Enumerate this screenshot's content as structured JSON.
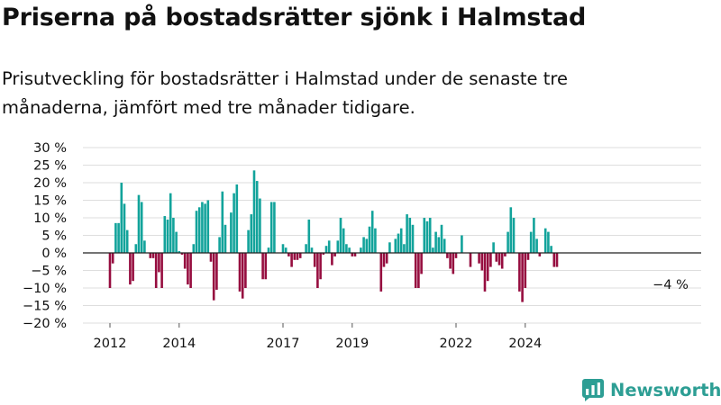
{
  "title": "Priserna på bostadsrätter sjönk i Halmstad",
  "subtitle": "Prisutveckling för bostadsrätter i Halmstad under de senaste tre månaderna, jämfört med tre månader tidigare.",
  "brand": "Newsworthy",
  "colors": {
    "positive": "#12a39b",
    "negative": "#960d3f",
    "gridline": "#dedede",
    "axis": "#222222",
    "brand": "#2d9e94"
  },
  "chart_data": {
    "type": "bar",
    "title": "Priserna på bostadsrätter sjönk i Halmstad",
    "subtitle": "Prisutveckling för bostadsrätter i Halmstad under de senaste tre månaderna, jämfört med tre månader tidigare.",
    "xlabel": "",
    "ylabel": "",
    "ylim": [
      -20,
      30
    ],
    "grid": true,
    "y_ticks": [
      {
        "value": 30,
        "label": "30 %"
      },
      {
        "value": 25,
        "label": "25 %"
      },
      {
        "value": 20,
        "label": "20 %"
      },
      {
        "value": 15,
        "label": "15 %"
      },
      {
        "value": 10,
        "label": "10 %"
      },
      {
        "value": 5,
        "label": "5 %"
      },
      {
        "value": 0,
        "label": "0 %"
      },
      {
        "value": -5,
        "label": "−5 %"
      },
      {
        "value": -10,
        "label": "−10 %"
      },
      {
        "value": -15,
        "label": "−15 %"
      },
      {
        "value": -20,
        "label": "−20 %"
      }
    ],
    "x_ticks": [
      {
        "date": "2012-01",
        "label": "2012"
      },
      {
        "date": "2014-01",
        "label": "2014"
      },
      {
        "date": "2017-01",
        "label": "2017"
      },
      {
        "date": "2019-01",
        "label": "2019"
      },
      {
        "date": "2022-01",
        "label": "2022"
      },
      {
        "date": "2024-01",
        "label": "2024"
      }
    ],
    "annotations": [
      {
        "text": "−4 %",
        "date": "2025-05",
        "value": -4
      }
    ],
    "series": [
      {
        "points": [
          {
            "date": "2012-01",
            "value": -10
          },
          {
            "date": "2012-02",
            "value": -3
          },
          {
            "date": "2012-03",
            "value": 8.5
          },
          {
            "date": "2012-04",
            "value": 8.5
          },
          {
            "date": "2012-05",
            "value": 20
          },
          {
            "date": "2012-06",
            "value": 14
          },
          {
            "date": "2012-07",
            "value": 6.5
          },
          {
            "date": "2012-08",
            "value": -9
          },
          {
            "date": "2012-09",
            "value": -8
          },
          {
            "date": "2012-10",
            "value": 2.5
          },
          {
            "date": "2012-11",
            "value": 16.5
          },
          {
            "date": "2012-12",
            "value": 14.5
          },
          {
            "date": "2013-01",
            "value": 3.5
          },
          {
            "date": "2013-02",
            "value": 0
          },
          {
            "date": "2013-03",
            "value": -1.5
          },
          {
            "date": "2013-04",
            "value": -1.5
          },
          {
            "date": "2013-05",
            "value": -10
          },
          {
            "date": "2013-06",
            "value": -5.5
          },
          {
            "date": "2013-07",
            "value": -10
          },
          {
            "date": "2013-08",
            "value": 10.5
          },
          {
            "date": "2013-09",
            "value": 9.5
          },
          {
            "date": "2013-10",
            "value": 17
          },
          {
            "date": "2013-11",
            "value": 10
          },
          {
            "date": "2013-12",
            "value": 6
          },
          {
            "date": "2014-01",
            "value": 0.5
          },
          {
            "date": "2014-02",
            "value": -0.5
          },
          {
            "date": "2014-03",
            "value": -4.5
          },
          {
            "date": "2014-04",
            "value": -9
          },
          {
            "date": "2014-05",
            "value": -10
          },
          {
            "date": "2014-06",
            "value": 2.5
          },
          {
            "date": "2014-07",
            "value": 12
          },
          {
            "date": "2014-08",
            "value": 13
          },
          {
            "date": "2014-09",
            "value": 14.5
          },
          {
            "date": "2014-10",
            "value": 14
          },
          {
            "date": "2014-11",
            "value": 15
          },
          {
            "date": "2014-12",
            "value": -2.5
          },
          {
            "date": "2015-01",
            "value": -13.5
          },
          {
            "date": "2015-02",
            "value": -10.5
          },
          {
            "date": "2015-03",
            "value": 4.5
          },
          {
            "date": "2015-04",
            "value": 17.5
          },
          {
            "date": "2015-05",
            "value": 8
          },
          {
            "date": "2015-06",
            "value": 0
          },
          {
            "date": "2015-07",
            "value": 11.5
          },
          {
            "date": "2015-08",
            "value": 17
          },
          {
            "date": "2015-09",
            "value": 19.5
          },
          {
            "date": "2015-10",
            "value": -11
          },
          {
            "date": "2015-11",
            "value": -13
          },
          {
            "date": "2015-12",
            "value": -10
          },
          {
            "date": "2016-01",
            "value": 6.5
          },
          {
            "date": "2016-02",
            "value": 11
          },
          {
            "date": "2016-03",
            "value": 23.5
          },
          {
            "date": "2016-04",
            "value": 20.5
          },
          {
            "date": "2016-05",
            "value": 15.5
          },
          {
            "date": "2016-06",
            "value": -7.5
          },
          {
            "date": "2016-07",
            "value": -7.5
          },
          {
            "date": "2016-08",
            "value": 1.5
          },
          {
            "date": "2016-09",
            "value": 14.5
          },
          {
            "date": "2016-10",
            "value": 14.5
          },
          {
            "date": "2016-11",
            "value": 0
          },
          {
            "date": "2016-12",
            "value": 0
          },
          {
            "date": "2017-01",
            "value": 2.5
          },
          {
            "date": "2017-02",
            "value": 1.5
          },
          {
            "date": "2017-03",
            "value": -1
          },
          {
            "date": "2017-04",
            "value": -4
          },
          {
            "date": "2017-05",
            "value": -2
          },
          {
            "date": "2017-06",
            "value": -2
          },
          {
            "date": "2017-07",
            "value": -1.5
          },
          {
            "date": "2017-08",
            "value": 0
          },
          {
            "date": "2017-09",
            "value": 2.5
          },
          {
            "date": "2017-10",
            "value": 9.5
          },
          {
            "date": "2017-11",
            "value": 1.5
          },
          {
            "date": "2017-12",
            "value": -4
          },
          {
            "date": "2018-01",
            "value": -10
          },
          {
            "date": "2018-02",
            "value": -7.5
          },
          {
            "date": "2018-03",
            "value": -0.5
          },
          {
            "date": "2018-04",
            "value": 2
          },
          {
            "date": "2018-05",
            "value": 3.5
          },
          {
            "date": "2018-06",
            "value": -3.5
          },
          {
            "date": "2018-07",
            "value": -1
          },
          {
            "date": "2018-08",
            "value": 3.5
          },
          {
            "date": "2018-09",
            "value": 10
          },
          {
            "date": "2018-10",
            "value": 7
          },
          {
            "date": "2018-11",
            "value": 2.5
          },
          {
            "date": "2018-12",
            "value": 1.5
          },
          {
            "date": "2019-01",
            "value": -1
          },
          {
            "date": "2019-02",
            "value": -1
          },
          {
            "date": "2019-03",
            "value": 0
          },
          {
            "date": "2019-04",
            "value": 1.5
          },
          {
            "date": "2019-05",
            "value": 4.5
          },
          {
            "date": "2019-06",
            "value": 4
          },
          {
            "date": "2019-07",
            "value": 7.5
          },
          {
            "date": "2019-08",
            "value": 12
          },
          {
            "date": "2019-09",
            "value": 7
          },
          {
            "date": "2019-10",
            "value": 0
          },
          {
            "date": "2019-11",
            "value": -11
          },
          {
            "date": "2019-12",
            "value": -4
          },
          {
            "date": "2020-01",
            "value": -3
          },
          {
            "date": "2020-02",
            "value": 3
          },
          {
            "date": "2020-03",
            "value": 0
          },
          {
            "date": "2020-04",
            "value": 4
          },
          {
            "date": "2020-05",
            "value": 5.5
          },
          {
            "date": "2020-06",
            "value": 7
          },
          {
            "date": "2020-07",
            "value": 2.5
          },
          {
            "date": "2020-08",
            "value": 11
          },
          {
            "date": "2020-09",
            "value": 10
          },
          {
            "date": "2020-10",
            "value": 8
          },
          {
            "date": "2020-11",
            "value": -10
          },
          {
            "date": "2020-12",
            "value": -10
          },
          {
            "date": "2021-01",
            "value": -6
          },
          {
            "date": "2021-02",
            "value": 10
          },
          {
            "date": "2021-03",
            "value": 9
          },
          {
            "date": "2021-04",
            "value": 10
          },
          {
            "date": "2021-05",
            "value": 1.5
          },
          {
            "date": "2021-06",
            "value": 6
          },
          {
            "date": "2021-07",
            "value": 4.5
          },
          {
            "date": "2021-08",
            "value": 8
          },
          {
            "date": "2021-09",
            "value": 4
          },
          {
            "date": "2021-10",
            "value": -1.5
          },
          {
            "date": "2021-11",
            "value": -4.5
          },
          {
            "date": "2021-12",
            "value": -6
          },
          {
            "date": "2022-01",
            "value": -1.5
          },
          {
            "date": "2022-02",
            "value": 0
          },
          {
            "date": "2022-03",
            "value": 5
          },
          {
            "date": "2022-04",
            "value": 0
          },
          {
            "date": "2022-05",
            "value": 0
          },
          {
            "date": "2022-06",
            "value": -4
          },
          {
            "date": "2022-07",
            "value": 0
          },
          {
            "date": "2022-08",
            "value": 0
          },
          {
            "date": "2022-09",
            "value": -3
          },
          {
            "date": "2022-10",
            "value": -5
          },
          {
            "date": "2022-11",
            "value": -11
          },
          {
            "date": "2022-12",
            "value": -8
          },
          {
            "date": "2023-01",
            "value": -4
          },
          {
            "date": "2023-02",
            "value": 3
          },
          {
            "date": "2023-03",
            "value": -2.5
          },
          {
            "date": "2023-04",
            "value": -3.5
          },
          {
            "date": "2023-05",
            "value": -4.5
          },
          {
            "date": "2023-06",
            "value": -1
          },
          {
            "date": "2023-07",
            "value": 6
          },
          {
            "date": "2023-08",
            "value": 13
          },
          {
            "date": "2023-09",
            "value": 10
          },
          {
            "date": "2023-10",
            "value": 0
          },
          {
            "date": "2023-11",
            "value": -11
          },
          {
            "date": "2023-12",
            "value": -14
          },
          {
            "date": "2024-01",
            "value": -10
          },
          {
            "date": "2024-02",
            "value": -2
          },
          {
            "date": "2024-03",
            "value": 6
          },
          {
            "date": "2024-04",
            "value": 10
          },
          {
            "date": "2024-05",
            "value": 4
          },
          {
            "date": "2024-06",
            "value": -1
          },
          {
            "date": "2024-07",
            "value": 0
          },
          {
            "date": "2024-08",
            "value": 7
          },
          {
            "date": "2024-09",
            "value": 6
          },
          {
            "date": "2024-10",
            "value": 2
          },
          {
            "date": "2024-11",
            "value": -4
          },
          {
            "date": "2024-12",
            "value": -4
          }
        ]
      }
    ]
  }
}
